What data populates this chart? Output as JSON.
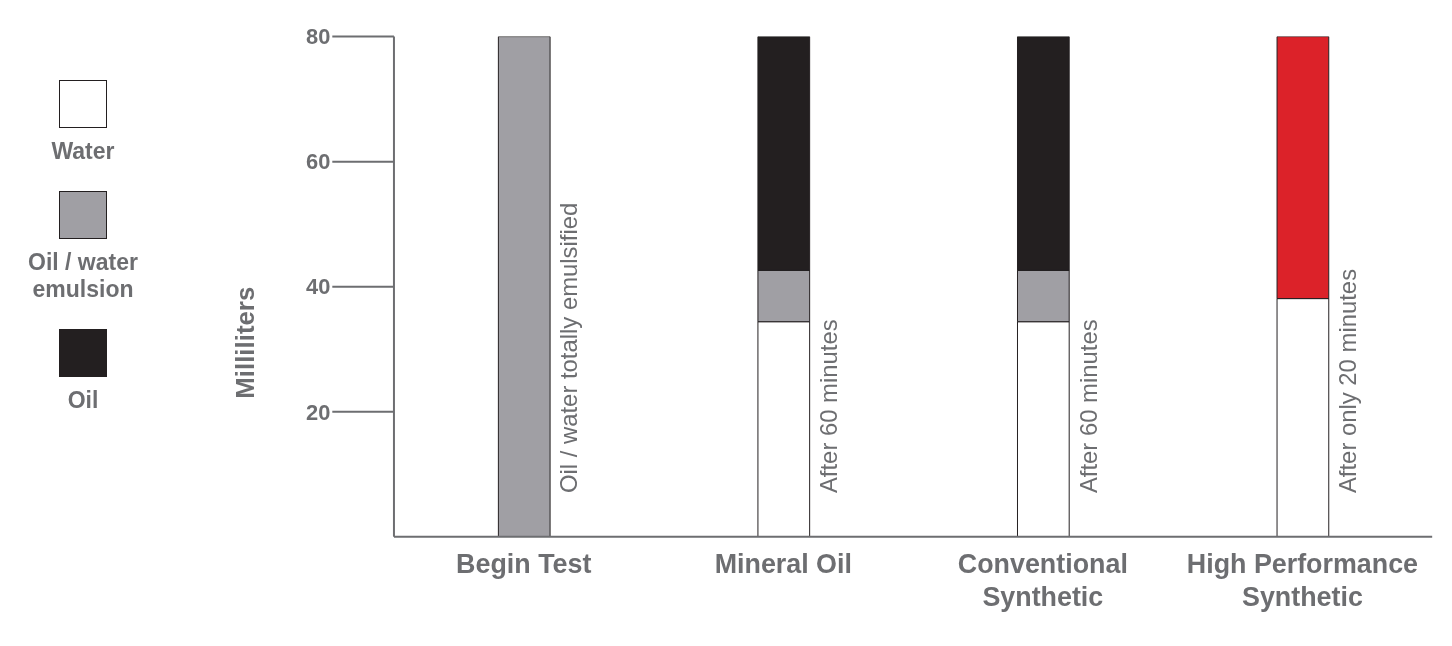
{
  "chart_data": {
    "type": "bar",
    "stacked": true,
    "ylabel": "Milliliters",
    "categories": [
      "Begin Test",
      "Mineral Oil",
      "Conventional Synthetic",
      "High Performance Synthetic"
    ],
    "series": [
      {
        "name": "Water",
        "color": "#ffffff",
        "values": [
          0,
          34.4,
          34.4,
          38.1
        ]
      },
      {
        "name": "Oil / water emulsion",
        "color": "#a09fa4",
        "values": [
          80,
          8.2,
          8.2,
          null
        ]
      },
      {
        "name": "Oil",
        "color": "#231f20",
        "colors": [
          "#231f20",
          "#231f20",
          "#231f20",
          "#dc2229"
        ],
        "values": [
          null,
          37.4,
          37.4,
          41.9
        ]
      }
    ],
    "ylim": [
      0,
      80
    ],
    "yticks": [
      20,
      40,
      60,
      80
    ],
    "grid": false,
    "legend": "left",
    "annotations": [
      "Oil / water totally emulsified",
      "After 60 minutes",
      "After 60 minutes",
      "After only 20 minutes"
    ]
  }
}
